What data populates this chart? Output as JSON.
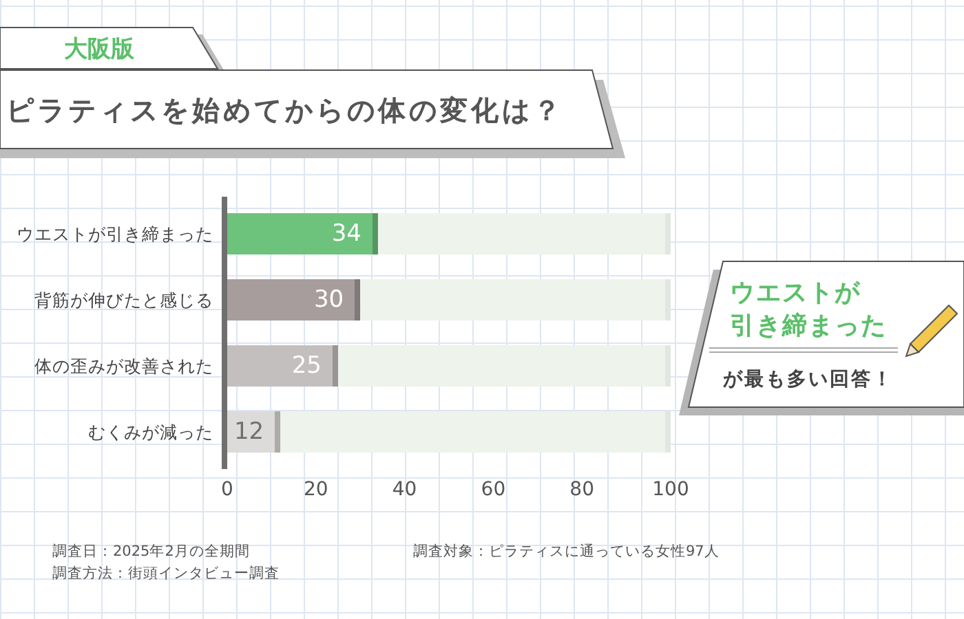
{
  "chart_data": {
    "type": "bar",
    "orientation": "horizontal",
    "stacked": true,
    "title": "ピラティスを始めてからの体の変化は？",
    "subtitle": "大阪版",
    "categories": [
      "ウエストが引き締まった",
      "背筋が伸びたと感じる",
      "体の歪みが改善された",
      "むくみが減った"
    ],
    "series": [
      {
        "colors": [
          "#6dc27c",
          "#a69d9c",
          "#c3bfbe",
          "#dddada"
        ],
        "values": [
          34,
          30,
          25,
          12
        ],
        "value_labels": [
          "34",
          "30",
          "25",
          "12"
        ]
      },
      {
        "color": "#eef3ec",
        "values": [
          66,
          70,
          75,
          88
        ]
      }
    ],
    "xlim": [
      0,
      100
    ],
    "xticks": [
      0,
      20,
      40,
      60,
      80,
      100
    ],
    "annotations": [
      "ウエストが",
      "引き締まった",
      "が最も多い回答！",
      "調査日：2025年2月の全期間",
      "調査方法：街頭インタビュー調査",
      "調査対象：ピラティスに通っている女性97人"
    ]
  }
}
